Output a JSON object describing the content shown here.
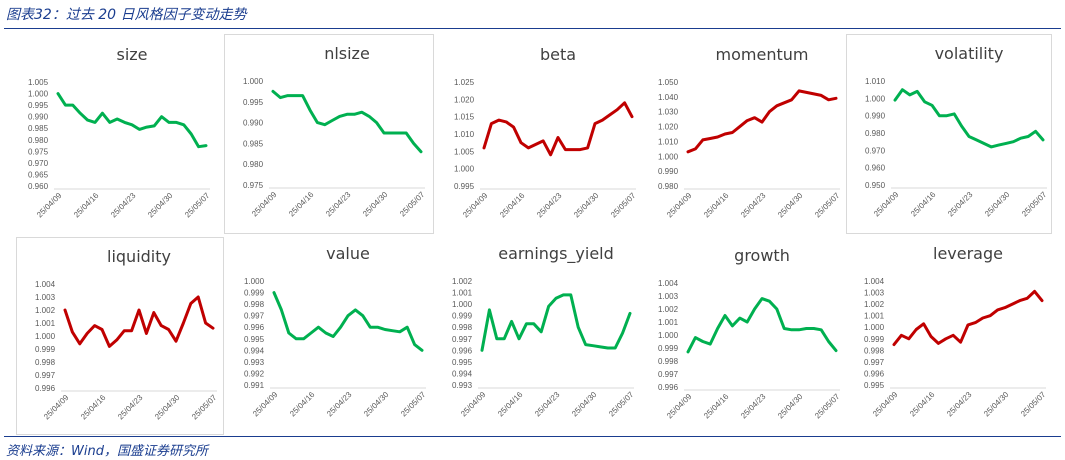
{
  "figure_title": "图表32：过去 20 日风格因子变动走势",
  "source_note": "资料来源：Wind，国盛证券研究所",
  "colors": {
    "up": "#c00000",
    "down": "#00b050",
    "heading": "#1a3d8f"
  },
  "x_tick_labels": [
    "25/04/09",
    "25/04/16",
    "25/04/23",
    "25/04/30",
    "25/05/07"
  ],
  "chart_data": [
    {
      "type": "line",
      "title": "size",
      "color": "#00b050",
      "ylim": [
        0.96,
        1.005
      ],
      "y_step": 0.005,
      "y_decimals": 3,
      "x": [
        0,
        1,
        2,
        3,
        4,
        5,
        6,
        7,
        8,
        9,
        10,
        11,
        12,
        13,
        14,
        15,
        16,
        17,
        18,
        19,
        20
      ],
      "values": [
        1.0,
        0.995,
        0.995,
        0.9915,
        0.9885,
        0.9875,
        0.9915,
        0.9875,
        0.989,
        0.9875,
        0.9865,
        0.9845,
        0.9855,
        0.986,
        0.99,
        0.9875,
        0.9875,
        0.9865,
        0.9825,
        0.977,
        0.9775
      ]
    },
    {
      "type": "line",
      "title": "nlsize",
      "color": "#00b050",
      "ylim": [
        0.975,
        1.0
      ],
      "y_step": 0.005,
      "y_decimals": 3,
      "x": [
        0,
        1,
        2,
        3,
        4,
        5,
        6,
        7,
        8,
        9,
        10,
        11,
        12,
        13,
        14,
        15,
        16,
        17,
        18,
        19,
        20
      ],
      "values": [
        0.9975,
        0.996,
        0.9965,
        0.9965,
        0.9965,
        0.993,
        0.99,
        0.9895,
        0.9905,
        0.9915,
        0.992,
        0.992,
        0.9925,
        0.9915,
        0.99,
        0.9875,
        0.9875,
        0.9875,
        0.9875,
        0.985,
        0.983
      ]
    },
    {
      "type": "line",
      "title": "beta",
      "color": "#c00000",
      "ylim": [
        0.995,
        1.025
      ],
      "y_step": 0.005,
      "y_decimals": 3,
      "x": [
        0,
        1,
        2,
        3,
        4,
        5,
        6,
        7,
        8,
        9,
        10,
        11,
        12,
        13,
        14,
        15,
        16,
        17,
        18,
        19,
        20
      ],
      "values": [
        1.006,
        1.013,
        1.014,
        1.0135,
        1.012,
        1.0075,
        1.006,
        1.007,
        1.008,
        1.004,
        1.009,
        1.0055,
        1.0055,
        1.0055,
        1.006,
        1.013,
        1.014,
        1.0155,
        1.017,
        1.019,
        1.015
      ]
    },
    {
      "type": "line",
      "title": "momentum",
      "color": "#c00000",
      "ylim": [
        0.98,
        1.05
      ],
      "y_step": 0.01,
      "y_decimals": 3,
      "x": [
        0,
        1,
        2,
        3,
        4,
        5,
        6,
        7,
        8,
        9,
        10,
        11,
        12,
        13,
        14,
        15,
        16,
        17,
        18,
        19,
        20
      ],
      "values": [
        1.003,
        1.005,
        1.011,
        1.012,
        1.013,
        1.015,
        1.016,
        1.02,
        1.024,
        1.026,
        1.023,
        1.03,
        1.034,
        1.036,
        1.038,
        1.044,
        1.043,
        1.042,
        1.041,
        1.038,
        1.039
      ]
    },
    {
      "type": "line",
      "title": "volatility",
      "color": "#00b050",
      "ylim": [
        0.95,
        1.01
      ],
      "y_step": 0.01,
      "y_decimals": 3,
      "x": [
        0,
        1,
        2,
        3,
        4,
        5,
        6,
        7,
        8,
        9,
        10,
        11,
        12,
        13,
        14,
        15,
        16,
        17,
        18,
        19,
        20
      ],
      "values": [
        0.999,
        1.005,
        1.002,
        1.004,
        0.998,
        0.996,
        0.99,
        0.99,
        0.991,
        0.984,
        0.978,
        0.976,
        0.974,
        0.972,
        0.973,
        0.974,
        0.975,
        0.977,
        0.978,
        0.981,
        0.976
      ]
    },
    {
      "type": "line",
      "title": "liquidity",
      "color": "#c00000",
      "ylim": [
        0.996,
        1.004
      ],
      "y_step": 0.001,
      "y_decimals": 3,
      "x": [
        0,
        1,
        2,
        3,
        4,
        5,
        6,
        7,
        8,
        9,
        10,
        11,
        12,
        13,
        14,
        15,
        16,
        17,
        18,
        19,
        20
      ],
      "values": [
        1.002,
        1.0003,
        0.9994,
        1.0002,
        1.0008,
        1.0005,
        0.9992,
        0.9997,
        1.0004,
        1.0004,
        1.002,
        1.0002,
        1.0018,
        1.0008,
        1.0005,
        0.9996,
        1.001,
        1.0025,
        1.003,
        1.001,
        1.0006
      ]
    },
    {
      "type": "line",
      "title": "value",
      "color": "#00b050",
      "ylim": [
        0.991,
        1.0
      ],
      "y_step": 0.001,
      "y_decimals": 3,
      "x": [
        0,
        1,
        2,
        3,
        4,
        5,
        6,
        7,
        8,
        9,
        10,
        11,
        12,
        13,
        14,
        15,
        16,
        17,
        18,
        19,
        20
      ],
      "values": [
        0.999,
        0.9975,
        0.9955,
        0.995,
        0.995,
        0.9955,
        0.996,
        0.9955,
        0.9952,
        0.996,
        0.997,
        0.9975,
        0.997,
        0.996,
        0.996,
        0.9958,
        0.9957,
        0.9956,
        0.996,
        0.9945,
        0.994
      ]
    },
    {
      "type": "line",
      "title": "earnings_yield",
      "color": "#00b050",
      "ylim": [
        0.993,
        1.002
      ],
      "y_step": 0.001,
      "y_decimals": 3,
      "x": [
        0,
        1,
        2,
        3,
        4,
        5,
        6,
        7,
        8,
        9,
        10,
        11,
        12,
        13,
        14,
        15,
        16,
        17,
        18,
        19,
        20
      ],
      "values": [
        0.996,
        0.9995,
        0.997,
        0.997,
        0.9985,
        0.997,
        0.9983,
        0.9983,
        0.9976,
        0.9998,
        1.0005,
        1.0008,
        1.0008,
        0.998,
        0.9965,
        0.9964,
        0.9963,
        0.9962,
        0.9962,
        0.9975,
        0.9992
      ]
    },
    {
      "type": "line",
      "title": "growth",
      "color": "#00b050",
      "ylim": [
        0.996,
        1.004
      ],
      "y_step": 0.001,
      "y_decimals": 3,
      "x": [
        0,
        1,
        2,
        3,
        4,
        5,
        6,
        7,
        8,
        9,
        10,
        11,
        12,
        13,
        14,
        15,
        16,
        17,
        18,
        19,
        20
      ],
      "values": [
        0.9987,
        0.9998,
        0.9995,
        0.9993,
        1.0005,
        1.0015,
        1.0007,
        1.0013,
        1.001,
        1.002,
        1.0028,
        1.0026,
        1.002,
        1.0005,
        1.0004,
        1.0004,
        1.0005,
        1.0005,
        1.0004,
        0.9995,
        0.9988
      ]
    },
    {
      "type": "line",
      "title": "leverage",
      "color": "#c00000",
      "ylim": [
        0.995,
        1.004
      ],
      "y_step": 0.001,
      "y_decimals": 3,
      "x": [
        0,
        1,
        2,
        3,
        4,
        5,
        6,
        7,
        8,
        9,
        10,
        11,
        12,
        13,
        14,
        15,
        16,
        17,
        18,
        19,
        20
      ],
      "values": [
        0.9985,
        0.9993,
        0.999,
        0.9998,
        1.0003,
        0.9992,
        0.9986,
        0.999,
        0.9993,
        0.9987,
        1.0002,
        1.0004,
        1.0008,
        1.001,
        1.0015,
        1.0017,
        1.002,
        1.0023,
        1.0025,
        1.0031,
        1.0023
      ]
    }
  ]
}
